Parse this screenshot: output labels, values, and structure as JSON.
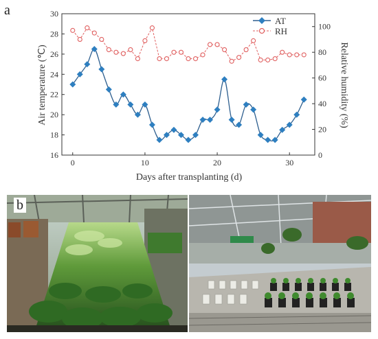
{
  "panel_a": "a",
  "panel_b": "b",
  "chart_data": {
    "type": "line",
    "xlabel": "Days after transplanting (d)",
    "ylabel_left": "Air temperature (℃)",
    "ylabel_right": "Relative humidity (%)",
    "xlim": [
      -1.5,
      33.5
    ],
    "ylim_left": [
      16,
      30
    ],
    "ylim_right": [
      0,
      110
    ],
    "xticks": [
      0,
      10,
      20,
      30
    ],
    "yticks_left": [
      16,
      18,
      20,
      22,
      24,
      26,
      28,
      30
    ],
    "yticks_right": [
      0,
      20,
      40,
      60,
      80,
      100
    ],
    "legend_position": "top-right",
    "series": [
      {
        "name": "AT",
        "axis": "left",
        "color": "#2e5f8f",
        "marker": "diamond",
        "line": "solid",
        "x": [
          0,
          1,
          2,
          3,
          4,
          5,
          6,
          7,
          8,
          9,
          10,
          11,
          12,
          13,
          14,
          15,
          16,
          17,
          18,
          19,
          20,
          21,
          22,
          23,
          24,
          25,
          26,
          27,
          28,
          29,
          30,
          31,
          32
        ],
        "values": [
          23.0,
          24.0,
          25.0,
          26.5,
          24.5,
          22.5,
          21.0,
          22.0,
          21.0,
          20.0,
          21.0,
          19.0,
          17.5,
          18.0,
          18.5,
          18.0,
          17.5,
          18.0,
          19.5,
          19.5,
          20.5,
          23.5,
          19.5,
          19.0,
          21.0,
          20.5,
          18.0,
          17.5,
          17.5,
          18.5,
          19.0,
          20.0,
          21.5
        ]
      },
      {
        "name": "RH",
        "axis": "right",
        "color": "#e06060",
        "marker": "open-circle",
        "line": "dashed",
        "x": [
          0,
          1,
          2,
          3,
          4,
          5,
          6,
          7,
          8,
          9,
          10,
          11,
          12,
          13,
          14,
          15,
          16,
          17,
          18,
          19,
          20,
          21,
          22,
          23,
          24,
          25,
          26,
          27,
          28,
          29,
          30,
          31,
          32
        ],
        "values": [
          97,
          90,
          99,
          95,
          90,
          82,
          80,
          79,
          82,
          75,
          89,
          99,
          75,
          75,
          80,
          80,
          75,
          75,
          78,
          86,
          86,
          82,
          73,
          76,
          82,
          89,
          74,
          74,
          75,
          80,
          78,
          78,
          78
        ]
      }
    ]
  },
  "photos": {
    "left_caption": "",
    "right_caption": ""
  }
}
